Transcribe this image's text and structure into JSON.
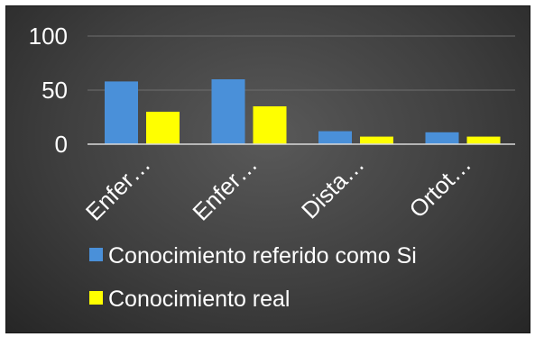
{
  "chart_data": {
    "type": "bar",
    "categories": [
      "Enfer…",
      "Enfer…",
      "Dista…",
      "Ortot…"
    ],
    "series": [
      {
        "name": "Conocimiento referido como Si",
        "values": [
          58,
          60,
          12,
          11
        ],
        "color": "#4a90d9"
      },
      {
        "name": "Conocimiento real",
        "values": [
          30,
          35,
          7,
          7
        ],
        "color": "#ffff00"
      }
    ],
    "yticks": [
      0,
      50,
      100
    ],
    "ylim": [
      0,
      100
    ],
    "grid": true,
    "legend_position": "bottom",
    "title": "",
    "xlabel": "",
    "ylabel": ""
  },
  "colors": {
    "background": "#404040",
    "text": "#ffffff"
  }
}
